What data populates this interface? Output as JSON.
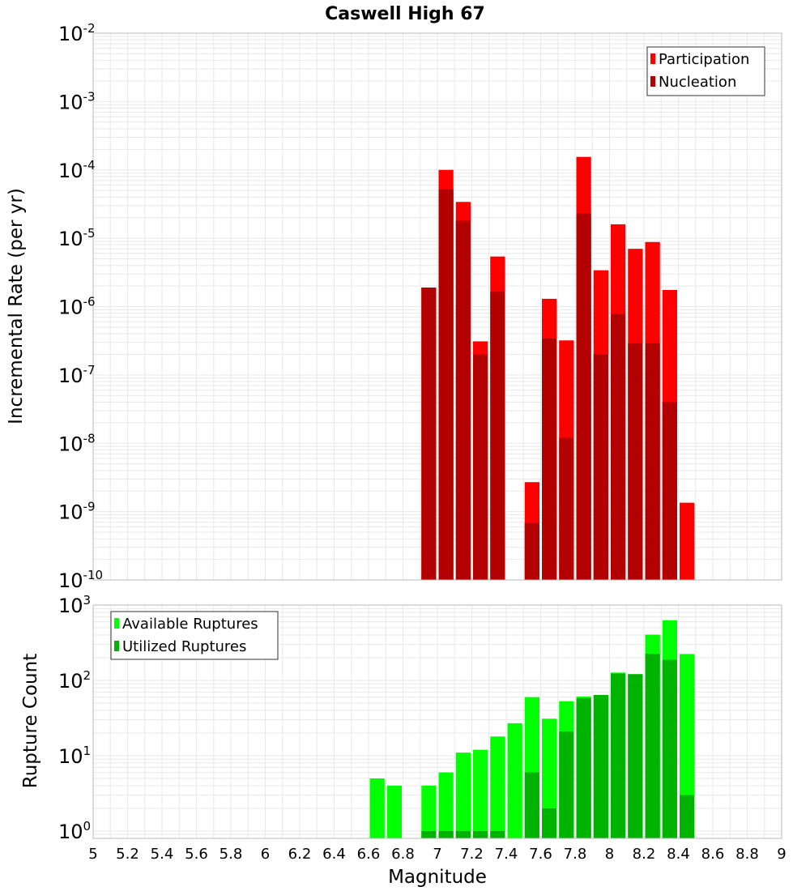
{
  "colors": {
    "participation": "#ff0000",
    "nucleation": "#b30000",
    "available": "#00ff00",
    "utilized": "#00b300",
    "grid": "#e8e8e8",
    "frame": "#b8b8b8"
  },
  "chart_data": [
    {
      "type": "bar",
      "title": "Caswell High 67",
      "xlabel": "Magnitude",
      "ylabel": "Incremental Rate (per yr)",
      "xlim": [
        5,
        9
      ],
      "ylim": [
        1e-10,
        0.01
      ],
      "yscale": "log",
      "grid": true,
      "legend": "top-right",
      "bin_width": 0.1,
      "series": [
        {
          "name": "Participation",
          "color": "#ff0000",
          "x": [
            6.95,
            7.05,
            7.15,
            7.25,
            7.35,
            7.55,
            7.65,
            7.75,
            7.85,
            7.95,
            8.05,
            8.15,
            8.25,
            8.35,
            8.45
          ],
          "values": [
            1.9e-06,
            0.0001,
            3.4e-05,
            3.1e-07,
            5.4e-06,
            2.7e-09,
            1.3e-06,
            3.2e-07,
            0.000155,
            3.4e-06,
            1.6e-05,
            7e-06,
            8.8e-06,
            1.75e-06,
            1.35e-09
          ]
        },
        {
          "name": "Nucleation",
          "color": "#b30000",
          "x": [
            6.95,
            7.05,
            7.15,
            7.25,
            7.35,
            7.55,
            7.65,
            7.75,
            7.85,
            7.95,
            8.05,
            8.15,
            8.25,
            8.35
          ],
          "values": [
            1.9e-06,
            5.2e-05,
            1.8e-05,
            2e-07,
            1.65e-06,
            6.8e-10,
            3.4e-07,
            1.2e-08,
            2.3e-05,
            2e-07,
            7.8e-07,
            2.9e-07,
            2.9e-07,
            4e-08
          ]
        }
      ]
    },
    {
      "type": "bar",
      "xlabel": "Magnitude",
      "ylabel": "Rupture Count",
      "xlim": [
        5,
        9
      ],
      "ylim": [
        0.8,
        1000
      ],
      "yscale": "log",
      "grid": true,
      "legend": "top-left",
      "bin_width": 0.1,
      "x_ticks": [
        "5",
        "5.2",
        "5.4",
        "5.6",
        "5.8",
        "6",
        "6.2",
        "6.4",
        "6.6",
        "6.8",
        "7",
        "7.2",
        "7.4",
        "7.6",
        "7.8",
        "8",
        "8.2",
        "8.4",
        "8.6",
        "8.8",
        "9"
      ],
      "series": [
        {
          "name": "Available Ruptures",
          "color": "#00ff00",
          "x": [
            6.65,
            6.75,
            6.95,
            7.05,
            7.15,
            7.25,
            7.35,
            7.45,
            7.55,
            7.65,
            7.75,
            7.85,
            7.95,
            8.05,
            8.15,
            8.25,
            8.35,
            8.45
          ],
          "values": [
            5,
            4,
            4,
            6,
            11,
            12,
            18,
            27,
            60,
            31,
            53,
            61,
            64,
            127,
            121,
            405,
            630,
            224
          ]
        },
        {
          "name": "Utilized Ruptures",
          "color": "#00b300",
          "x": [
            6.95,
            7.05,
            7.15,
            7.25,
            7.35,
            7.55,
            7.65,
            7.75,
            7.85,
            7.95,
            8.05,
            8.15,
            8.25,
            8.35,
            8.45
          ],
          "values": [
            1,
            1,
            1,
            1,
            1,
            6,
            2,
            21,
            58,
            64,
            123,
            121,
            225,
            188,
            3
          ]
        }
      ]
    }
  ]
}
